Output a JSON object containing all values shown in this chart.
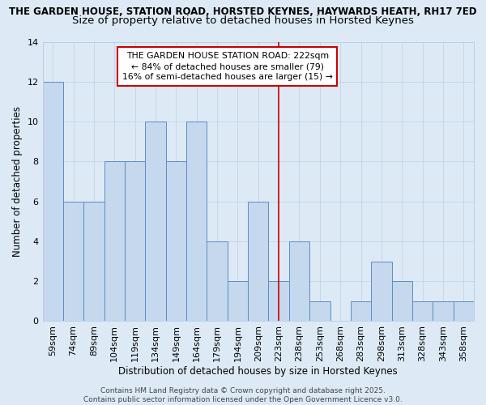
{
  "title_line1": "THE GARDEN HOUSE, STATION ROAD, HORSTED KEYNES, HAYWARDS HEATH, RH17 7ED",
  "title_line2": "Size of property relative to detached houses in Horsted Keynes",
  "xlabel": "Distribution of detached houses by size in Horsted Keynes",
  "ylabel": "Number of detached properties",
  "categories": [
    "59sqm",
    "74sqm",
    "89sqm",
    "104sqm",
    "119sqm",
    "134sqm",
    "149sqm",
    "164sqm",
    "179sqm",
    "194sqm",
    "209sqm",
    "223sqm",
    "238sqm",
    "253sqm",
    "268sqm",
    "283sqm",
    "298sqm",
    "313sqm",
    "328sqm",
    "343sqm",
    "358sqm"
  ],
  "values": [
    12,
    6,
    6,
    8,
    8,
    10,
    8,
    10,
    4,
    2,
    6,
    2,
    4,
    1,
    0,
    1,
    3,
    2,
    1,
    1,
    1
  ],
  "bar_color": "#c5d8ed",
  "bar_edge_color": "#5b8cc8",
  "background_color": "#ddeaf6",
  "grid_color": "#b8cfe8",
  "vline_x_index": 11,
  "vline_color": "#cc0000",
  "annotation_line1": "THE GARDEN HOUSE STATION ROAD: 222sqm",
  "annotation_line2": "← 84% of detached houses are smaller (79)",
  "annotation_line3": "16% of semi-detached houses are larger (15) →",
  "annotation_box_edge_color": "#cc0000",
  "annotation_fontsize": 7.8,
  "ylim": [
    0,
    14
  ],
  "yticks": [
    0,
    2,
    4,
    6,
    8,
    10,
    12,
    14
  ],
  "footer_text": "Contains HM Land Registry data © Crown copyright and database right 2025.\nContains public sector information licensed under the Open Government Licence v3.0.",
  "title_fontsize1": 8.5,
  "title_fontsize2": 9.5,
  "xlabel_fontsize": 8.5,
  "ylabel_fontsize": 8.5,
  "tick_fontsize": 8,
  "footer_fontsize": 6.5
}
